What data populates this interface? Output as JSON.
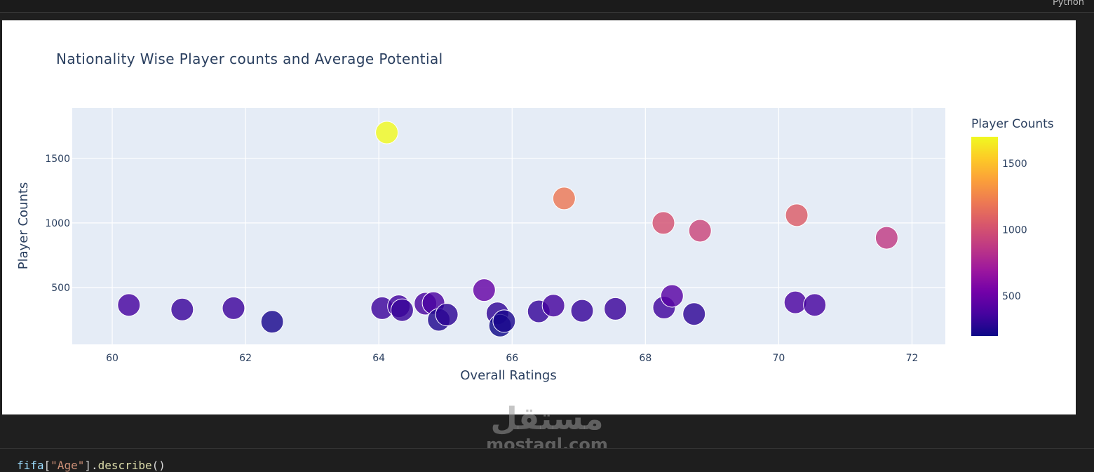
{
  "editor": {
    "language_label": "Python",
    "code_line": {
      "var": "fifa",
      "open": "[",
      "key": "\"Age\"",
      "close": "].",
      "fn": "describe",
      "parens": "()"
    }
  },
  "watermark": {
    "arabic": "مستقل",
    "latin": "mostaql.com"
  },
  "chart_data": {
    "type": "scatter",
    "title": "Nationality Wise Player counts and Average Potential",
    "xlabel": "Overall Ratings",
    "ylabel": "Player Counts",
    "xlim": [
      59.4,
      72.5
    ],
    "ylim": [
      60,
      1890
    ],
    "xticks": [
      60,
      62,
      64,
      66,
      68,
      70,
      72
    ],
    "yticks": [
      500,
      1000,
      1500
    ],
    "grid": true,
    "colorbar": {
      "title": "Player Counts",
      "range": [
        200,
        1700
      ],
      "ticks": [
        500,
        1000,
        1500
      ],
      "colorscale": "plasma"
    },
    "points": [
      {
        "x": 60.25,
        "y": 365
      },
      {
        "x": 61.05,
        "y": 330
      },
      {
        "x": 61.82,
        "y": 340
      },
      {
        "x": 62.4,
        "y": 235
      },
      {
        "x": 64.05,
        "y": 340
      },
      {
        "x": 64.12,
        "y": 1700
      },
      {
        "x": 64.3,
        "y": 355
      },
      {
        "x": 64.35,
        "y": 325
      },
      {
        "x": 64.7,
        "y": 375
      },
      {
        "x": 64.82,
        "y": 380
      },
      {
        "x": 64.9,
        "y": 250
      },
      {
        "x": 65.02,
        "y": 290
      },
      {
        "x": 65.58,
        "y": 480
      },
      {
        "x": 65.78,
        "y": 300
      },
      {
        "x": 65.82,
        "y": 205
      },
      {
        "x": 65.88,
        "y": 240
      },
      {
        "x": 66.4,
        "y": 315
      },
      {
        "x": 66.62,
        "y": 360
      },
      {
        "x": 66.78,
        "y": 1190
      },
      {
        "x": 67.05,
        "y": 320
      },
      {
        "x": 67.55,
        "y": 335
      },
      {
        "x": 68.27,
        "y": 1000
      },
      {
        "x": 68.28,
        "y": 345
      },
      {
        "x": 68.4,
        "y": 435
      },
      {
        "x": 68.73,
        "y": 295
      },
      {
        "x": 68.82,
        "y": 940
      },
      {
        "x": 70.25,
        "y": 385
      },
      {
        "x": 70.27,
        "y": 1060
      },
      {
        "x": 70.54,
        "y": 365
      },
      {
        "x": 71.62,
        "y": 885
      }
    ]
  }
}
